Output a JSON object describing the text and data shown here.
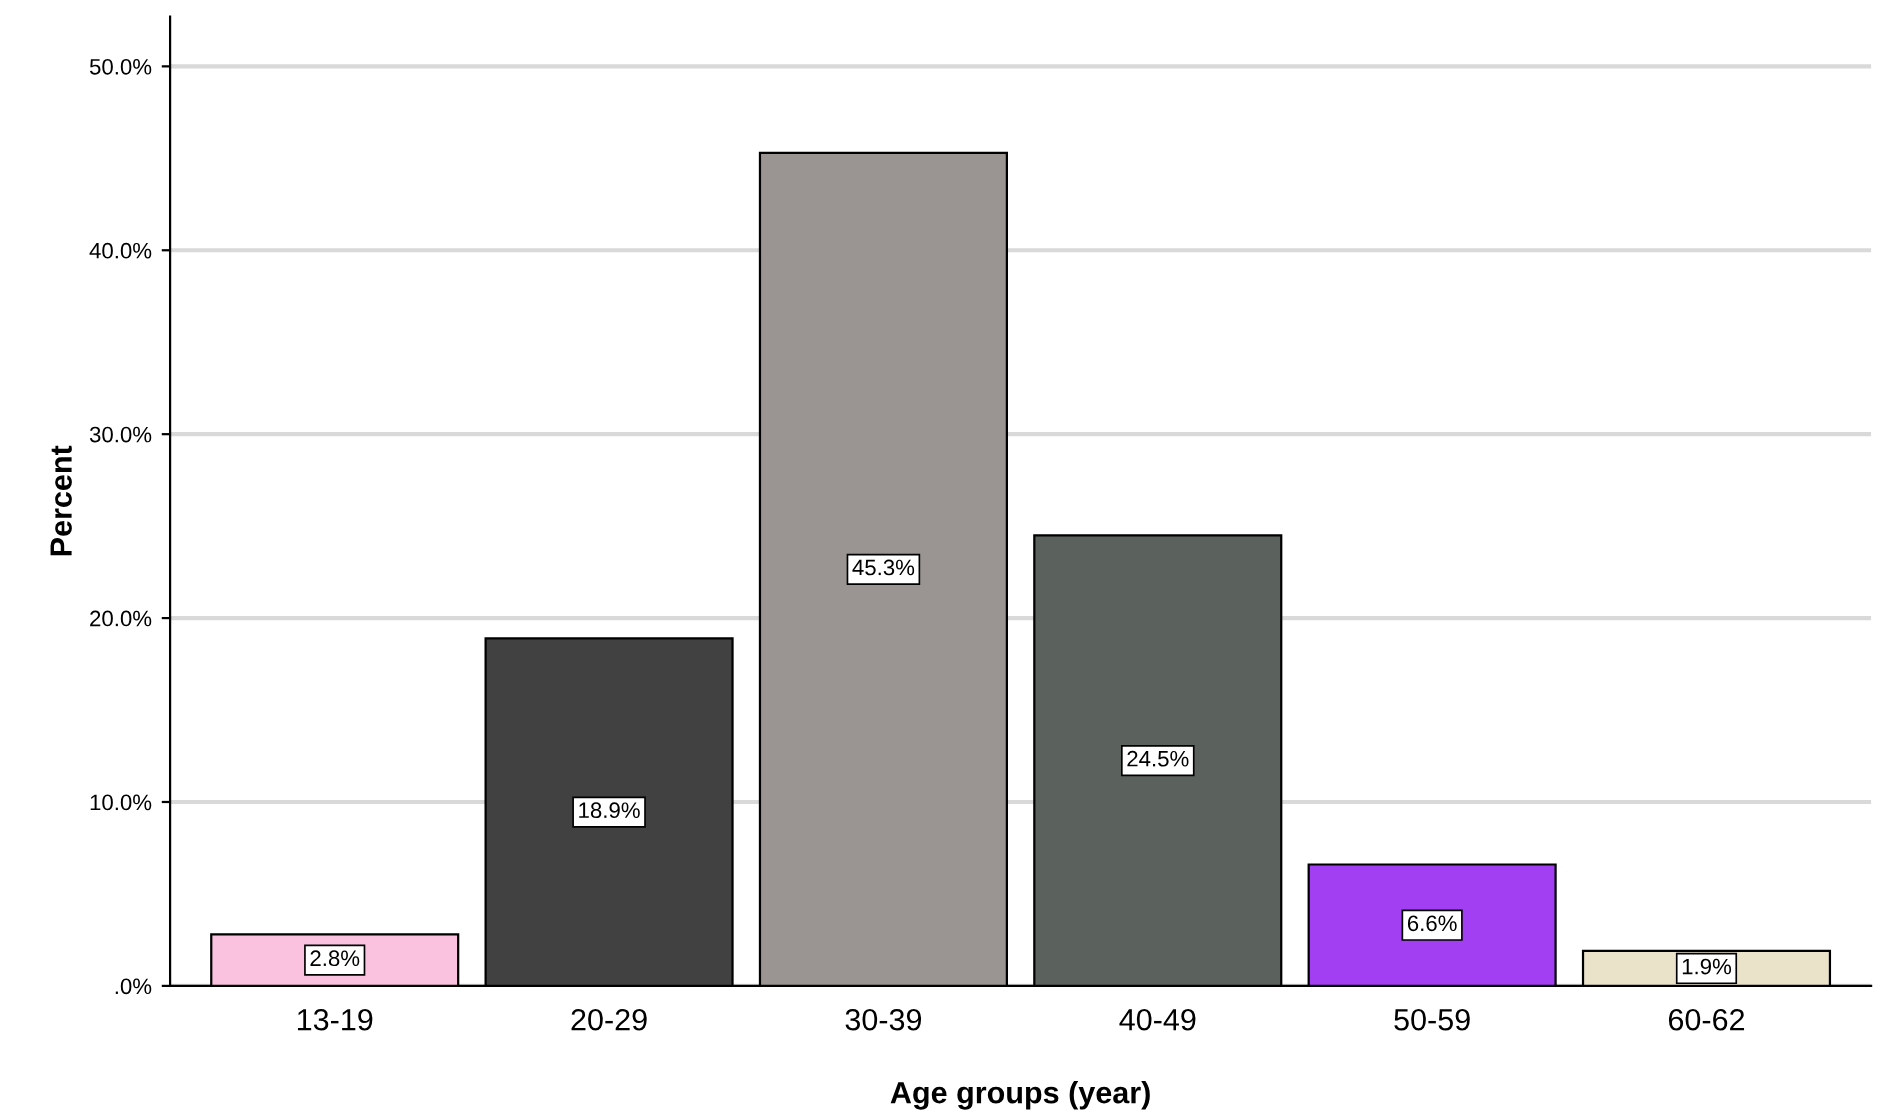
{
  "chart_data": {
    "type": "bar",
    "xlabel": "Age groups (year)",
    "ylabel": "Percent",
    "categories": [
      "13-19",
      "20-29",
      "30-39",
      "40-49",
      "50-59",
      "60-62"
    ],
    "values": [
      2.8,
      18.9,
      45.3,
      24.5,
      6.6,
      1.9
    ],
    "colors": [
      "#fbc2e0",
      "#414141",
      "#9a9592",
      "#5b625d",
      "#a33ff2",
      "#ebe3c9"
    ],
    "value_labels": [
      "2.8%",
      "18.9%",
      "45.3%",
      "24.5%",
      "6.6%",
      "1.9%"
    ],
    "ylim": [
      0,
      52.7
    ],
    "yticks": [
      {
        "value": 0,
        "label": ".0%"
      },
      {
        "value": 10,
        "label": "10.0%"
      },
      {
        "value": 20,
        "label": "20.0%"
      },
      {
        "value": 30,
        "label": "30.0%"
      },
      {
        "value": 40,
        "label": "40.0%"
      },
      {
        "value": 50,
        "label": "50.0%"
      }
    ],
    "grid": "y"
  }
}
